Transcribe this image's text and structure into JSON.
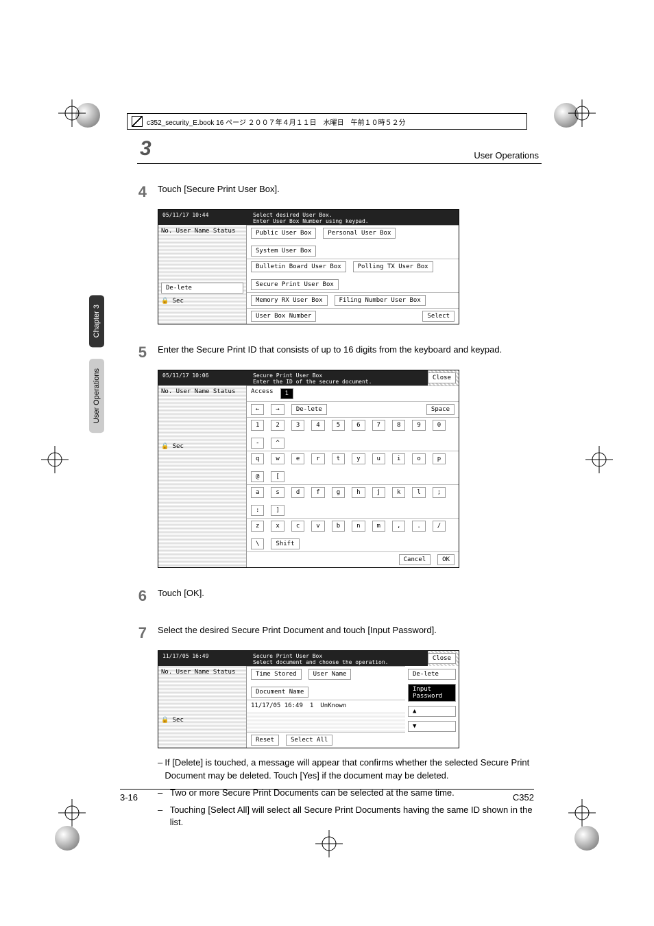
{
  "framemaker_header": "c352_security_E.book  16 ページ  ２００７年４月１１日　水曜日　午前１０時５２分",
  "running_head": {
    "chapter_number": "3",
    "section_title": "User Operations"
  },
  "side_tabs": {
    "upper": "Chapter 3",
    "lower": "User Operations"
  },
  "steps": [
    {
      "num": "4",
      "text": "Touch [Secure Print User Box].",
      "screenshot": {
        "title": "Select desired User Box.",
        "subtitle": "Enter User Box Number using keypad.",
        "left_panel": {
          "header": "No.  User Name  Status"
        },
        "tabs": [
          "Public User Box",
          "Personal User Box",
          "System User Box"
        ],
        "boxes": [
          "Bulletin Board User Box",
          "Polling TX User Box",
          "Secure Print User Box",
          "Memory RX User Box",
          "Filing Number User Box"
        ],
        "bottom_buttons": [
          "User Box Number",
          "Select"
        ],
        "datetime": "05/11/17   10:44",
        "lock_label": "Sec"
      }
    },
    {
      "num": "5",
      "text": "Enter the Secure Print ID that consists of up to 16 digits from the keyboard and keypad.",
      "screenshot": {
        "title": "Secure Print User Box",
        "subtitle": "Enter the ID of the secure document.",
        "close": "Close",
        "field_label": "Access",
        "field_value": "1",
        "nav": [
          "←",
          "→",
          "De-lete",
          "Space"
        ],
        "row1": [
          "1",
          "2",
          "3",
          "4",
          "5",
          "6",
          "7",
          "8",
          "9",
          "0",
          "-",
          "^"
        ],
        "row2": [
          "q",
          "w",
          "e",
          "r",
          "t",
          "y",
          "u",
          "i",
          "o",
          "p",
          "@",
          "["
        ],
        "row3": [
          "a",
          "s",
          "d",
          "f",
          "g",
          "h",
          "j",
          "k",
          "l",
          ";",
          ":",
          "]"
        ],
        "row4": [
          "z",
          "x",
          "c",
          "v",
          "b",
          "n",
          "m",
          ",",
          ".",
          "/",
          "\\",
          "Shift"
        ],
        "bottom": [
          "Cancel",
          "OK"
        ],
        "datetime": "05/11/17   10:06",
        "lock_label": "Sec"
      }
    },
    {
      "num": "6",
      "text": "Touch [OK]."
    },
    {
      "num": "7",
      "text": "Select the desired Secure Print Document and touch [Input Password].",
      "screenshot": {
        "title": "Secure Print User Box",
        "subtitle": "Select document and choose the operation.",
        "close": "Close",
        "cols": [
          "Time Stored",
          "User Name",
          "Document Name"
        ],
        "row": [
          "11/17/05 16:49",
          "1",
          "UnKnown"
        ],
        "right_buttons": [
          "De-lete",
          "Input Password"
        ],
        "bottom": [
          "Reset",
          "Select All"
        ],
        "datetime": "11/17/05   16:49",
        "lock_label": "Sec"
      }
    }
  ],
  "bullets": [
    "If [Delete] is touched, a message will appear that confirms whether the selected Secure Print Document may be deleted. Touch [Yes] if the document may be deleted.",
    "Two or more Secure Print Documents can be selected at the same time.",
    "Touching [Select All] will select all Secure Print Documents having the same ID shown in the list."
  ],
  "footer": {
    "left": "3-16",
    "right": "C352"
  }
}
